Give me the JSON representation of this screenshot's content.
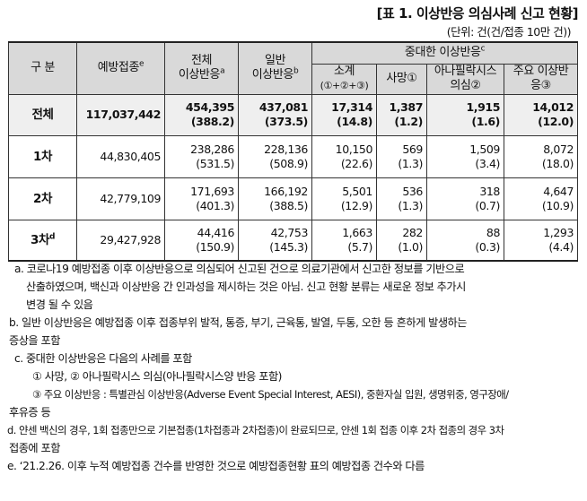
{
  "title": "[표 1. 이상반응 의심사례 신고 현황]",
  "unit": "(단위: 건(건/접종 10만 건))",
  "table": {
    "headers": {
      "category": "구  분",
      "vaccinations": "예방접종",
      "vaccinations_sup": "e",
      "total_line1": "전체",
      "total_line2": "이상반응",
      "total_sup": "a",
      "general_line1": "일반",
      "general_line2": "이상반응",
      "general_sup": "b",
      "serious_group": "중대한 이상반응",
      "serious_sup": "c",
      "sub_sum_line1": "소계",
      "sub_sum_line2": "(①+②+③)",
      "sub_death": "사망①",
      "sub_anaphylaxis_line1": "아나필락시스",
      "sub_anaphylaxis_line2": "의심②",
      "sub_major_line1": "주요 이상반",
      "sub_major_line2": "응③"
    },
    "rows": [
      {
        "label": "전체",
        "label_sup": "",
        "vaccinations": "117,037,442",
        "total": "454,395",
        "total_rate": "(388.2)",
        "general": "437,081",
        "general_rate": "(373.5)",
        "serious_sum": "17,314",
        "serious_sum_rate": "(14.8)",
        "death": "1,387",
        "death_rate": "(1.2)",
        "anaphylaxis": "1,915",
        "anaphylaxis_rate": "(1.6)",
        "major": "14,012",
        "major_rate": "(12.0)"
      },
      {
        "label": "1차",
        "label_sup": "",
        "vaccinations": "44,830,405",
        "total": "238,286",
        "total_rate": "(531.5)",
        "general": "228,136",
        "general_rate": "(508.9)",
        "serious_sum": "10,150",
        "serious_sum_rate": "(22.6)",
        "death": "569",
        "death_rate": "(1.3)",
        "anaphylaxis": "1,509",
        "anaphylaxis_rate": "(3.4)",
        "major": "8,072",
        "major_rate": "(18.0)"
      },
      {
        "label": "2차",
        "label_sup": "",
        "vaccinations": "42,779,109",
        "total": "171,693",
        "total_rate": "(401.3)",
        "general": "166,192",
        "general_rate": "(388.5)",
        "serious_sum": "5,501",
        "serious_sum_rate": "(12.9)",
        "death": "536",
        "death_rate": "(1.3)",
        "anaphylaxis": "318",
        "anaphylaxis_rate": "(0.7)",
        "major": "4,647",
        "major_rate": "(10.9)"
      },
      {
        "label": "3차",
        "label_sup": "d",
        "vaccinations": "29,427,928",
        "total": "44,416",
        "total_rate": "(150.9)",
        "general": "42,753",
        "general_rate": "(145.3)",
        "serious_sum": "1,663",
        "serious_sum_rate": "(5.7)",
        "death": "282",
        "death_rate": "(1.0)",
        "anaphylaxis": "88",
        "anaphylaxis_rate": "(0.3)",
        "major": "1,293",
        "major_rate": "(4.4)"
      }
    ]
  },
  "notes": {
    "a_line1": "a. 코로나19 예방접종 이후 이상반응으로 의심되어 신고된 건으로 의료기관에서 신고한 정보를 기반으로",
    "a_line2": "산출하였으며, 백신과 이상반응 간 인과성을 제시하는 것은 아님. 신고 현황 분류는 새로운 정보 추가시",
    "a_line3": "변경 될 수 있음",
    "b_line1": "b. 일반 이상반응은 예방접종 이후 접종부위 발적, 통증, 부기, 근육통, 발열, 두통, 오한 등 흔하게 발생하는",
    "b_line2": "증상을 포함",
    "c_line1": "c. 중대한 이상반응은 다음의 사례를 포함",
    "c_line2": "① 사망, ② 아나필락시스 의심(아나필락시스양 반응 포함)",
    "c_line3": "③ 주요 이상반응 : 특별관심 이상반응(Adverse Event Special Interest, AESI), 중환자실 입원, 생명위중, 영구장애/",
    "c_line4": "후유증 등",
    "d_line1": "d. 얀센 백신의 경우, 1회 접종만으로 기본접종(1차접종과 2차접종)이 완료되므로, 얀센 1회 접종 이후 2차 접종의 경우 3차",
    "d_line2": "접종에 포함",
    "e_line1": "e. ‘21.2.26. 이후 누적 예방접종 건수를 반영한 것으로 예방접종현황 표의 예방접종 건수와 다름"
  }
}
